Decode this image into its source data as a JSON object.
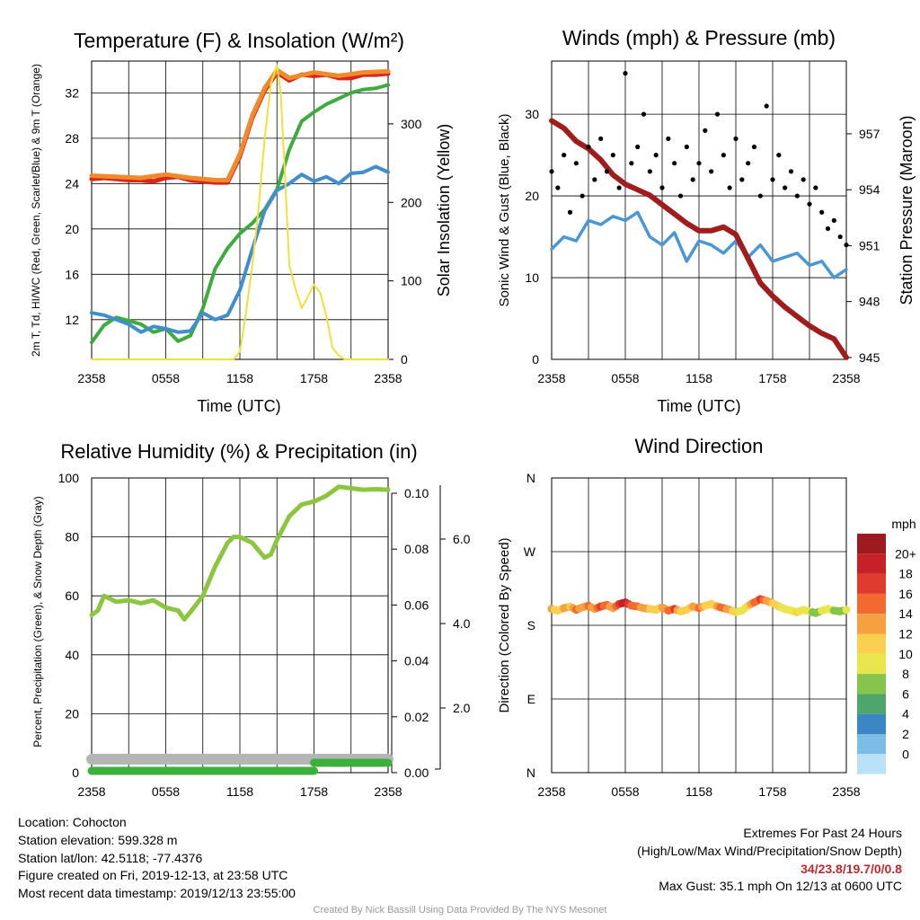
{
  "charts": {
    "temperature": {
      "title": "Temperature (F) & Insolation (W/m²)",
      "xlabel": "Time (UTC)",
      "ylabel_left": "2m T, Td, HI/WC (Red, Green, Scarlet/Blue) & 9m T (Orange)",
      "ylabel_right": "Solar Insolation (Yellow)"
    },
    "winds": {
      "title": "Winds (mph) & Pressure (mb)",
      "xlabel": "Time (UTC)",
      "ylabel_left": "Sonic Wind & Gust (Blue, Black)",
      "ylabel_right": "Station Pressure (Maroon)"
    },
    "humidity": {
      "title": "Relative Humidity (%) & Precipitation (in)",
      "ylabel_left": "Percent, Precipitation (Green), & Snow Depth (Gray)"
    },
    "direction": {
      "title": "Wind Direction",
      "ylabel_left": "Direction (Colored By Speed)",
      "legend_title": "mph"
    }
  },
  "chart_data": [
    {
      "type": "line",
      "title": "Temperature (F) & Insolation (W/m²)",
      "xlabel": "Time (UTC)",
      "ylabel": "2m T, Td, HI/WC (Red, Green, Scarlet/Blue) & 9m T (Orange)",
      "y2label": "Solar Insolation (Yellow)",
      "x_ticks": [
        "2358",
        "0558",
        "1158",
        "1758",
        "2358"
      ],
      "x_hours": [
        0,
        6,
        12,
        18,
        24
      ],
      "ylim": [
        8.5,
        34.8
      ],
      "y_ticks": [
        12,
        16,
        20,
        24,
        28,
        32
      ],
      "y2lim": [
        0,
        380
      ],
      "y2_ticks": [
        0,
        100,
        200,
        300
      ],
      "series": [
        {
          "name": "2m T",
          "axis": "left",
          "color": "#d9261c",
          "x": [
            0,
            1,
            2,
            3,
            4,
            5,
            6,
            7,
            8,
            9,
            10,
            11,
            12,
            13,
            14,
            15,
            16,
            17,
            18,
            19,
            20,
            21,
            22,
            23,
            24
          ],
          "y": [
            24.4,
            24.5,
            24.4,
            24.3,
            24.3,
            24.2,
            24.5,
            24.6,
            24.3,
            24.2,
            24.1,
            24.1,
            26.4,
            29.8,
            32.2,
            33.8,
            33.1,
            33.6,
            33.5,
            33.6,
            33.3,
            33.3,
            33.6,
            33.6,
            33.7
          ]
        },
        {
          "name": "9m T",
          "axis": "left",
          "color": "#f08a2a",
          "x": [
            0,
            2,
            4,
            6,
            8,
            10,
            11,
            12,
            13,
            14,
            15,
            16,
            18,
            20,
            22,
            24
          ],
          "y": [
            24.7,
            24.6,
            24.5,
            24.8,
            24.5,
            24.3,
            24.3,
            26.6,
            30.0,
            32.4,
            34.0,
            33.3,
            33.8,
            33.5,
            33.8,
            33.9
          ]
        },
        {
          "name": "Td",
          "axis": "left",
          "color": "#3cad3c",
          "x": [
            0,
            1,
            2,
            3,
            4,
            5,
            6,
            7,
            8,
            9,
            10,
            11,
            12,
            13,
            14,
            15,
            16,
            17,
            18,
            19,
            20,
            21,
            22,
            23,
            24
          ],
          "y": [
            10.0,
            11.5,
            12.2,
            11.9,
            11.6,
            10.9,
            11.2,
            10.1,
            10.6,
            13.0,
            16.5,
            18.3,
            19.6,
            20.5,
            21.7,
            23.5,
            27.0,
            29.5,
            30.3,
            31.0,
            31.5,
            32.0,
            32.3,
            32.4,
            32.7
          ]
        },
        {
          "name": "HI/WC",
          "axis": "left",
          "color": "#3f8fcf",
          "x": [
            0,
            1,
            2,
            3,
            4,
            5,
            6,
            7,
            8,
            9,
            10,
            11,
            12,
            13,
            14,
            15,
            16,
            17,
            18,
            19,
            20,
            21,
            22,
            23,
            24
          ],
          "y": [
            12.6,
            12.4,
            12.0,
            11.6,
            10.9,
            11.4,
            11.2,
            10.9,
            11.0,
            12.6,
            12.0,
            12.4,
            14.6,
            18.2,
            21.6,
            23.4,
            24.0,
            24.8,
            24.2,
            24.6,
            24.0,
            24.9,
            25.0,
            25.5,
            25.0
          ]
        },
        {
          "name": "Solar Insolation",
          "axis": "right",
          "color": "#f2e03a",
          "x": [
            0,
            11.5,
            12.0,
            12.5,
            13.0,
            13.5,
            14.0,
            14.5,
            15.0,
            15.3,
            15.6,
            16.0,
            16.5,
            17.0,
            17.5,
            18.0,
            18.5,
            19.0,
            19.5,
            20.0,
            20.5,
            24
          ],
          "y": [
            0,
            0,
            10,
            60,
            120,
            190,
            280,
            350,
            375,
            340,
            250,
            120,
            90,
            65,
            80,
            95,
            85,
            55,
            15,
            5,
            0,
            0
          ]
        }
      ]
    },
    {
      "type": "scatter",
      "title": "Winds (mph) & Pressure (mb)",
      "xlabel": "Time (UTC)",
      "ylabel": "Sonic Wind & Gust (Blue, Black)",
      "y2label": "Station Pressure (Maroon)",
      "x_ticks": [
        "2358",
        "0558",
        "1158",
        "1758",
        "2358"
      ],
      "x_hours": [
        0,
        6,
        12,
        18,
        24
      ],
      "ylim": [
        0,
        36.5
      ],
      "y_ticks": [
        0,
        10,
        20,
        30
      ],
      "y2lim": [
        944.9,
        960.9
      ],
      "y2_ticks": [
        945,
        948,
        951,
        954,
        957
      ],
      "series": [
        {
          "name": "Sonic Wind",
          "axis": "left",
          "color": "#4a97d6",
          "x": [
            0,
            1,
            2,
            3,
            4,
            5,
            6,
            7,
            8,
            9,
            10,
            11,
            12,
            13,
            14,
            15,
            16,
            17,
            18,
            19,
            20,
            21,
            22,
            23,
            24
          ],
          "y": [
            13.5,
            15.0,
            14.5,
            17.0,
            16.5,
            17.5,
            17.0,
            18.0,
            15.0,
            14.0,
            15.5,
            12.0,
            14.5,
            14.0,
            13.0,
            14.5,
            12.5,
            14.0,
            12.0,
            12.5,
            13.0,
            11.5,
            12.0,
            10.0,
            11.0
          ]
        },
        {
          "name": "Gust",
          "axis": "left",
          "color": "#000000",
          "x": [
            0,
            0.5,
            1,
            1.5,
            2,
            2.5,
            3,
            3.5,
            4,
            4.5,
            5,
            5.5,
            6,
            6.5,
            7,
            7.5,
            8,
            8.5,
            9,
            9.5,
            10,
            10.5,
            11,
            11.5,
            12,
            12.5,
            13,
            13.5,
            14,
            14.5,
            15,
            15.5,
            16,
            16.5,
            17,
            17.5,
            18,
            18.5,
            19,
            19.5,
            20,
            20.5,
            21,
            21.5,
            22,
            22.5,
            23,
            23.5,
            24
          ],
          "y": [
            23,
            21,
            25,
            18,
            24,
            20,
            26,
            22,
            27,
            23,
            25,
            21,
            35,
            24,
            26,
            30,
            23,
            25,
            21,
            27,
            24,
            20,
            26,
            22,
            24,
            28,
            23,
            30,
            25,
            21,
            27,
            22,
            24,
            26,
            20,
            31,
            22,
            25,
            21,
            23,
            20,
            22,
            19,
            21,
            18,
            16,
            17,
            15,
            14
          ]
        },
        {
          "name": "Station Pressure",
          "axis": "right",
          "color": "#a11d1d",
          "x": [
            0,
            1,
            2,
            3,
            4,
            5,
            6,
            7,
            8,
            9,
            10,
            11,
            12,
            13,
            14,
            15,
            16,
            17,
            18,
            19,
            20,
            21,
            22,
            23,
            24
          ],
          "y": [
            957.7,
            957.3,
            956.6,
            956.2,
            955.6,
            954.8,
            954.3,
            954.0,
            953.7,
            953.2,
            952.7,
            952.2,
            951.8,
            951.8,
            952.0,
            951.6,
            950.3,
            949.0,
            948.3,
            947.7,
            947.2,
            946.7,
            946.3,
            946.0,
            945.0
          ]
        }
      ]
    },
    {
      "type": "line",
      "title": "Relative Humidity (%) & Precipitation (in)",
      "ylabel": "Percent, Precipitation (Green), & Snow Depth (Gray)",
      "x_ticks": [
        "2358",
        "0558",
        "1158",
        "1758",
        "2358"
      ],
      "x_hours": [
        0,
        6,
        12,
        18,
        24
      ],
      "ylim": [
        0,
        100
      ],
      "y_ticks": [
        0,
        20,
        40,
        60,
        80,
        100
      ],
      "precip_axis": {
        "lim": [
          0,
          0.1
        ],
        "ticks": [
          "0.00",
          "0.02",
          "0.04",
          "0.06",
          "0.08",
          "0.10"
        ]
      },
      "snow_axis": {
        "ticks": [
          "2.0",
          "4.0",
          "6.0"
        ]
      },
      "series": [
        {
          "name": "Relative Humidity",
          "axis": "left",
          "color": "#8cc63e",
          "x": [
            0,
            0.5,
            1,
            1.5,
            2,
            3,
            4,
            5,
            6,
            7,
            7.5,
            8,
            9,
            10,
            11,
            11.5,
            12,
            13,
            14,
            14.5,
            15,
            16,
            17,
            18,
            19,
            20,
            21,
            22,
            23,
            24
          ],
          "y": [
            53.5,
            55,
            60,
            59,
            58,
            58.5,
            57.5,
            58.5,
            56,
            55,
            52,
            54.5,
            60,
            70,
            78,
            80,
            80,
            78,
            73,
            74,
            79,
            87,
            91,
            92,
            94,
            97,
            96.5,
            96,
            96.2,
            96
          ]
        },
        {
          "name": "Precipitation",
          "axis": "right",
          "color": "#3bb13b",
          "x": [
            0,
            18,
            18,
            24
          ],
          "y": [
            0,
            0,
            0.004,
            0.004
          ]
        },
        {
          "name": "Snow Depth",
          "axis": "left",
          "color": "#b5b5b5",
          "x": [
            0,
            24
          ],
          "y": [
            4.5,
            4.5
          ]
        }
      ]
    },
    {
      "type": "scatter",
      "title": "Wind Direction",
      "ylabel": "Direction (Colored By Speed)",
      "x_ticks": [
        "2358",
        "0558",
        "1158",
        "1758",
        "2358"
      ],
      "x_hours": [
        0,
        6,
        12,
        18,
        24
      ],
      "y_ticks": [
        "N",
        "E",
        "S",
        "W",
        "N"
      ],
      "ylim": [
        0,
        360
      ],
      "legend": {
        "title": "mph",
        "labels": [
          "20+",
          "18",
          "16",
          "14",
          "12",
          "10",
          "8",
          "6",
          "4",
          "2",
          "0"
        ],
        "colors": [
          "#9d1b1e",
          "#c52126",
          "#e03b2f",
          "#f26a30",
          "#f7a040",
          "#fbd050",
          "#e9e64d",
          "#86c54c",
          "#4ea66a",
          "#3b86c4",
          "#7cbde6",
          "#b9e1f7"
        ]
      },
      "series": [
        {
          "name": "Direction",
          "x": [
            0,
            0.5,
            1,
            1.5,
            2,
            2.5,
            3,
            3.5,
            4,
            4.5,
            5,
            5.5,
            6,
            6.5,
            7,
            7.5,
            8,
            8.5,
            9,
            9.5,
            10,
            10.5,
            11,
            11.5,
            12,
            12.5,
            13,
            13.5,
            14,
            14.5,
            15,
            15.5,
            16,
            16.5,
            17,
            17.5,
            18,
            18.5,
            19,
            19.5,
            20,
            20.5,
            21,
            21.5,
            22,
            22.5,
            23,
            23.5,
            24
          ],
          "y": [
            200,
            198,
            201,
            203,
            199,
            202,
            204,
            200,
            203,
            205,
            201,
            206,
            208,
            204,
            203,
            201,
            200,
            199,
            202,
            198,
            200,
            197,
            199,
            203,
            201,
            204,
            206,
            203,
            201,
            199,
            196,
            198,
            204,
            208,
            212,
            210,
            207,
            203,
            200,
            198,
            196,
            199,
            197,
            195,
            198,
            200,
            198,
            197,
            199
          ],
          "speed": [
            14,
            12,
            15,
            13,
            17,
            14,
            16,
            15,
            18,
            16,
            14,
            19,
            21,
            17,
            16,
            15,
            13,
            12,
            14,
            16,
            18,
            13,
            12,
            14,
            16,
            13,
            12,
            15,
            17,
            14,
            12,
            10,
            12,
            16,
            19,
            15,
            13,
            12,
            11,
            10,
            12,
            11,
            10,
            9,
            10,
            11,
            9,
            8,
            10
          ]
        }
      ]
    }
  ],
  "footer_left": {
    "location": "Location: Cohocton",
    "elevation": "Station elevation: 599.328 m",
    "latlon": "Station lat/lon: 42.5118; -77.4376",
    "created": "Figure created on Fri, 2019-12-13, at 23:58 UTC",
    "recent": "Most recent data timestamp: 2019/12/13 23:55:00"
  },
  "footer_right": {
    "title": "Extremes For Past 24 Hours",
    "subtitle": "(High/Low/Max Wind/Precipitation/Snow Depth)",
    "values": "34/23.8/19.7/0/0.8",
    "max_gust": "Max Gust: 35.1 mph On 12/13 at 0600 UTC"
  },
  "credit": "Created By Nick Bassill Using Data Provided By The NYS Mesonet"
}
